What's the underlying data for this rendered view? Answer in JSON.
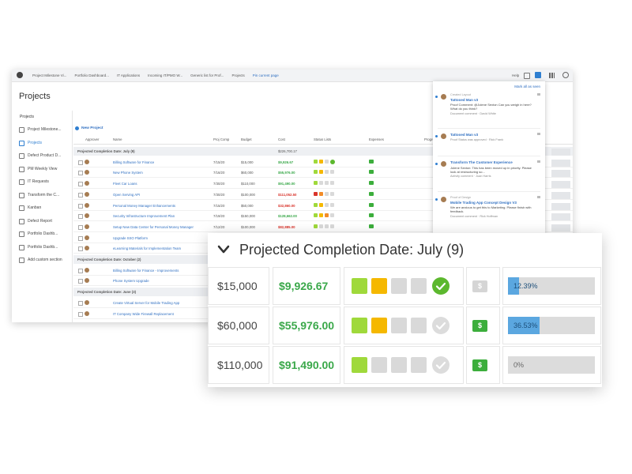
{
  "tabs": [
    "Project Milestone Vi...",
    "Portfolio Dashboard...",
    "IT Applications",
    "Incoming IT/PMO W...",
    "Generic list for Prof...",
    "Projects",
    "Pin current page"
  ],
  "help": "Help",
  "page_title": "Projects",
  "sidebar": {
    "heading": "Projects",
    "items": [
      "Project Milestone...",
      "Projects",
      "Defect Product D...",
      "PM Weekly View",
      "IT Requests",
      "Transform the C...",
      "Kanban",
      "Defect Report",
      "Portfolio Dashb...",
      "Portfolio Dashb...",
      "Add custom section"
    ]
  },
  "toolbar": {
    "new_project": "New Project"
  },
  "table": {
    "columns": [
      "Approver",
      "Name",
      "Proj Comp",
      "Budget",
      "Cost",
      "Status Lists",
      "Expenses",
      "Progress"
    ],
    "groups": [
      {
        "label": "Projected Completion Date: July (9)",
        "total": "$226,700.17",
        "rows": [
          {
            "name": "Billing Software for Finance",
            "date": "7/15/20",
            "budget": "$15,000",
            "cost": "$9,926.67",
            "cost_status": "under",
            "status": [
              "green",
              "yellow",
              "gray",
              "check"
            ]
          },
          {
            "name": "New Phone System",
            "date": "7/16/20",
            "budget": "$60,000",
            "cost": "$55,976.00",
            "cost_status": "under",
            "status": [
              "green",
              "yellow",
              "gray",
              "gray"
            ]
          },
          {
            "name": "Fleet Car Loans",
            "date": "7/30/20",
            "budget": "$110,000",
            "cost": "$91,490.00",
            "cost_status": "under",
            "status": [
              "green",
              "gray",
              "gray",
              "gray"
            ]
          },
          {
            "name": "Open Serving API",
            "date": "7/30/20",
            "budget": "$100,000",
            "cost": "$111,052.50",
            "cost_status": "over",
            "status": [
              "red",
              "orange",
              "gray",
              "gray"
            ]
          },
          {
            "name": "Personal Money Manager Enhancements",
            "date": "7/15/20",
            "budget": "$50,000",
            "cost": "$32,860.00",
            "cost_status": "over",
            "status": [
              "green",
              "yellow",
              "gray",
              "gray"
            ]
          },
          {
            "name": "Security Infrastructure Improvement Plan",
            "date": "7/19/20",
            "budget": "$150,000",
            "cost": "$128,662.00",
            "cost_status": "under",
            "status": [
              "green",
              "yellow",
              "orange",
              "gray"
            ]
          },
          {
            "name": "Setup New Data Center for Personal Money Manager",
            "date": "7/12/20",
            "budget": "$100,000",
            "cost": "$82,885.00",
            "cost_status": "over",
            "status": [
              "green",
              "gray",
              "gray",
              "gray"
            ]
          },
          {
            "name": "Upgrade SSO Platform"
          },
          {
            "name": "eLearning Materials for Implementation Team"
          }
        ]
      },
      {
        "label": "Projected Completion Date: October (2)",
        "rows": [
          {
            "name": "Billing Software for Finance - Improvements"
          },
          {
            "name": "Phone System Upgrade"
          }
        ]
      },
      {
        "label": "Projected Completion Date: June (3)",
        "rows": [
          {
            "name": "Create Virtual Server for Mobile Trading App"
          },
          {
            "name": "IT Company Wide Firewall Replacement"
          }
        ]
      }
    ]
  },
  "notifications": {
    "header": "Mark all as seen",
    "items": [
      {
        "label": "Created Layout",
        "title": "Tattooed Man v3",
        "body": "Proof Comment: @Jolene Sexton Can you weigh in here? What do you think?",
        "footer": "Document comment · David White"
      },
      {
        "title": "Tattooed Man v3",
        "footer": "Proof Status was approved · Rick Frank"
      },
      {
        "title": "Transform The Customer Experience",
        "body": "Jolene Sexton: This has been moved up in priority. Please look at restructuring so...",
        "footer": "Activity comment · Juan Harris"
      },
      {
        "label": "Proof of Design",
        "title": "Mobile Trading App Concept Design V3",
        "body": "We are anxious to get this to Marketing. Please finish with feedback.",
        "footer": "Document comment · Rick Hoffman"
      }
    ]
  },
  "zoom": {
    "group_label": "Projected Completion Date: July (9)",
    "rows": [
      {
        "budget": "$15,000",
        "cost": "$9,926.67",
        "status": [
          "green",
          "yellow",
          "gray",
          "gray",
          "check"
        ],
        "expense": {
          "label": "$",
          "active": false
        },
        "progress": 12.39,
        "progress_label": "12.39%"
      },
      {
        "budget": "$60,000",
        "cost": "$55,976.00",
        "status": [
          "green",
          "yellow",
          "gray",
          "gray",
          "check-off"
        ],
        "expense": {
          "label": "$",
          "active": true
        },
        "progress": 36.53,
        "progress_label": "36.53%"
      },
      {
        "budget": "$110,000",
        "cost": "$91,490.00",
        "status": [
          "green",
          "gray",
          "gray",
          "gray",
          "check-off"
        ],
        "expense": {
          "label": "$",
          "active": true
        },
        "progress": 0,
        "progress_label": "0%"
      }
    ]
  }
}
